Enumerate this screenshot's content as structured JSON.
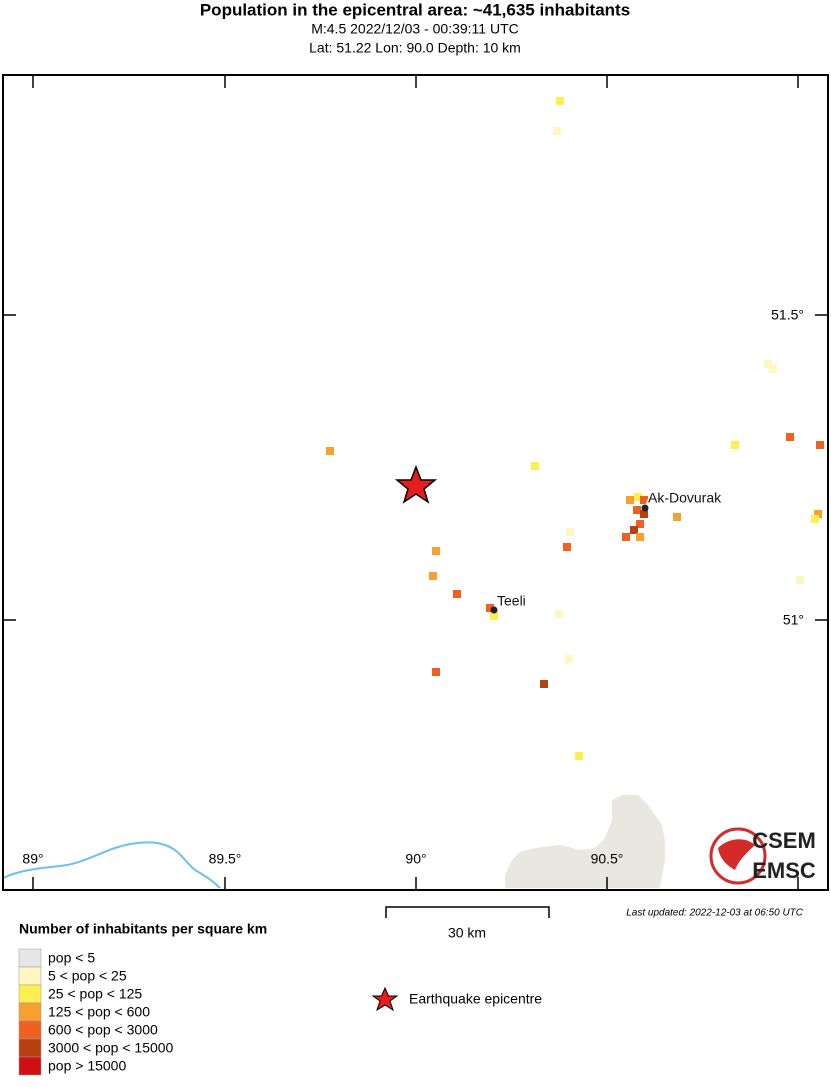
{
  "header": {
    "title": "Population in the epicentral area: ~41,635 inhabitants",
    "subtitle": "M:4.5 2022/12/03 - 00:39:11 UTC",
    "location": "Lat: 51.22 Lon: 90.0 Depth: 10 km"
  },
  "map": {
    "x_labels": [
      "89°",
      "89.5°",
      "90°",
      "90.5°"
    ],
    "y_labels": [
      "51.5°",
      "51°"
    ],
    "places": [
      "Ak-Dovurak",
      "Teeli"
    ],
    "logo": [
      "CSEM",
      "EMSC"
    ]
  },
  "scale_bar": "30 km",
  "updated": "Last updated: 2022-12-03 at 06:50 UTC",
  "legend": {
    "title": "Number of inhabitants per square km",
    "items": [
      "pop < 5",
      "5 < pop < 25",
      "25 < pop < 125",
      "125 < pop < 600",
      "600 < pop < 3000",
      "3000 < pop < 15000",
      "pop > 15000"
    ],
    "epicentre": "Earthquake epicentre"
  }
}
